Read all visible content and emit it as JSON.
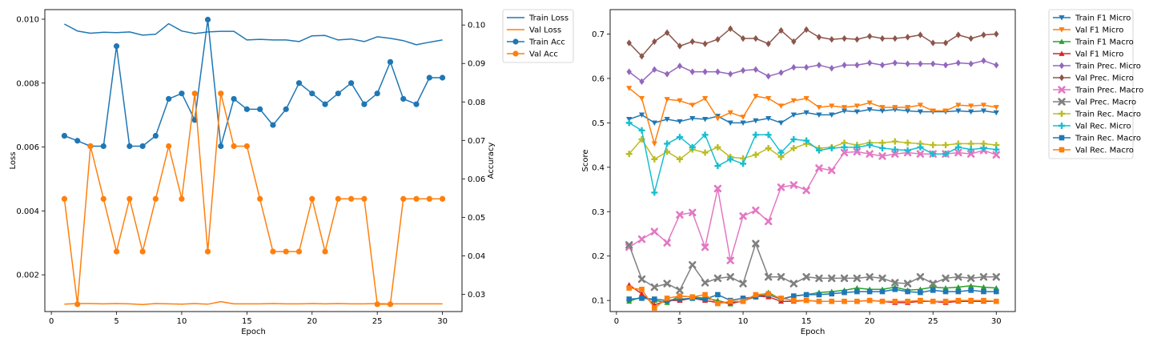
{
  "chart_data": [
    {
      "type": "line",
      "xlabel": "Epoch",
      "ylabel": "Loss",
      "ylabel_right": "Accuracy",
      "xlim": [
        -0.5,
        31.5
      ],
      "ylim": [
        0.00085,
        0.0103
      ],
      "ylim_right": [
        0.0255,
        0.104
      ],
      "x_ticks": [
        0,
        5,
        10,
        15,
        20,
        25,
        30
      ],
      "y_ticks": [
        "0.002",
        "0.004",
        "0.006",
        "0.008",
        "0.010"
      ],
      "y_ticks_right": [
        "0.03",
        "0.04",
        "0.05",
        "0.06",
        "0.07",
        "0.08",
        "0.09",
        "0.10"
      ],
      "grid": false,
      "legend_position": "outside-top-right",
      "x": [
        1,
        2,
        3,
        4,
        5,
        6,
        7,
        8,
        9,
        10,
        11,
        12,
        13,
        14,
        15,
        16,
        17,
        18,
        19,
        20,
        21,
        22,
        23,
        24,
        25,
        26,
        27,
        28,
        29,
        30
      ],
      "series": [
        {
          "name": "Train Loss",
          "axis": "left",
          "color": "#1f77b4",
          "marker": "none",
          "values": [
            0.00985,
            0.00963,
            0.00956,
            0.00959,
            0.00958,
            0.0096,
            0.0095,
            0.00953,
            0.00986,
            0.00963,
            0.00955,
            0.0096,
            0.00962,
            0.00962,
            0.00935,
            0.00937,
            0.00935,
            0.00935,
            0.0093,
            0.00948,
            0.00949,
            0.00935,
            0.00938,
            0.0093,
            0.00945,
            0.0094,
            0.00933,
            0.0092,
            0.00928,
            0.00935
          ]
        },
        {
          "name": "Val Loss",
          "axis": "left",
          "color": "#ff7f0e",
          "marker": "none",
          "values": [
            0.00108,
            0.0011,
            0.0011,
            0.00109,
            0.0011,
            0.00109,
            0.00107,
            0.0011,
            0.00109,
            0.00108,
            0.0011,
            0.00108,
            0.00116,
            0.00109,
            0.00109,
            0.00109,
            0.0011,
            0.00109,
            0.00109,
            0.0011,
            0.00109,
            0.0011,
            0.00109,
            0.00109,
            0.0011,
            0.00109,
            0.00109,
            0.00109,
            0.00109,
            0.00109
          ]
        },
        {
          "name": "Train Acc",
          "axis": "right",
          "color": "#1f77b4",
          "marker": "circle",
          "values": [
            0.0712,
            0.0699,
            0.0685,
            0.0685,
            0.0945,
            0.0685,
            0.0685,
            0.0712,
            0.0808,
            0.0822,
            0.0753,
            0.1014,
            0.0685,
            0.0808,
            0.0781,
            0.0781,
            0.074,
            0.0781,
            0.0849,
            0.0822,
            0.0794,
            0.0822,
            0.0849,
            0.0794,
            0.0822,
            0.0904,
            0.0808,
            0.0794,
            0.0863,
            0.0863
          ]
        },
        {
          "name": "Val Acc",
          "axis": "right",
          "color": "#ff7f0e",
          "marker": "circle",
          "values": [
            0.0548,
            0.0274,
            0.0685,
            0.0548,
            0.0411,
            0.0548,
            0.0411,
            0.0548,
            0.0685,
            0.0548,
            0.0822,
            0.0411,
            0.0822,
            0.0685,
            0.0685,
            0.0548,
            0.0411,
            0.0411,
            0.0411,
            0.0548,
            0.0411,
            0.0548,
            0.0548,
            0.0548,
            0.0274,
            0.0274,
            0.0548,
            0.0548,
            0.0548,
            0.0548
          ]
        }
      ]
    },
    {
      "type": "line",
      "xlabel": "Epoch",
      "ylabel": "Score",
      "xlim": [
        -0.5,
        31.5
      ],
      "ylim": [
        0.075,
        0.755
      ],
      "x_ticks": [
        0,
        5,
        10,
        15,
        20,
        25,
        30
      ],
      "y_ticks": [
        "0.1",
        "0.2",
        "0.3",
        "0.4",
        "0.5",
        "0.6",
        "0.7"
      ],
      "grid": false,
      "legend_position": "outside-top-right",
      "x": [
        1,
        2,
        3,
        4,
        5,
        6,
        7,
        8,
        9,
        10,
        11,
        12,
        13,
        14,
        15,
        16,
        17,
        18,
        19,
        20,
        21,
        22,
        23,
        24,
        25,
        26,
        27,
        28,
        29,
        30
      ],
      "series": [
        {
          "name": "Train F1 Micro",
          "color": "#1f77b4",
          "marker": "triangle_down",
          "values": [
            0.508,
            0.518,
            0.5,
            0.508,
            0.503,
            0.51,
            0.508,
            0.515,
            0.5,
            0.5,
            0.505,
            0.51,
            0.5,
            0.518,
            0.523,
            0.518,
            0.518,
            0.527,
            0.525,
            0.53,
            0.527,
            0.53,
            0.527,
            0.525,
            0.525,
            0.525,
            0.527,
            0.525,
            0.527,
            0.523
          ]
        },
        {
          "name": "Val F1 Micro",
          "color": "#ff7f0e",
          "marker": "triangle_down",
          "values": [
            0.578,
            0.555,
            0.453,
            0.553,
            0.55,
            0.54,
            0.555,
            0.51,
            0.523,
            0.513,
            0.56,
            0.555,
            0.538,
            0.55,
            0.555,
            0.535,
            0.538,
            0.535,
            0.538,
            0.545,
            0.535,
            0.535,
            0.535,
            0.54,
            0.527,
            0.527,
            0.54,
            0.538,
            0.54,
            0.535
          ]
        },
        {
          "name": "Train F1 Macro",
          "color": "#2ca02c",
          "marker": "triangle_up",
          "values": [
            0.098,
            0.108,
            0.1,
            0.095,
            0.11,
            0.108,
            0.105,
            0.1,
            0.092,
            0.1,
            0.108,
            0.118,
            0.103,
            0.11,
            0.113,
            0.118,
            0.12,
            0.123,
            0.128,
            0.125,
            0.125,
            0.13,
            0.123,
            0.125,
            0.13,
            0.128,
            0.13,
            0.133,
            0.13,
            0.128
          ]
        },
        {
          "name": "Val F1 Micro",
          "color": "#d62728",
          "marker": "triangle_up",
          "values": [
            0.135,
            0.115,
            0.09,
            0.1,
            0.1,
            0.105,
            0.1,
            0.095,
            0.095,
            0.098,
            0.11,
            0.108,
            0.098,
            0.098,
            0.1,
            0.098,
            0.098,
            0.098,
            0.098,
            0.1,
            0.098,
            0.095,
            0.095,
            0.098,
            0.098,
            0.095,
            0.098,
            0.098,
            0.098,
            0.098
          ]
        },
        {
          "name": "Train Prec. Micro",
          "color": "#9467bd",
          "marker": "diamond",
          "values": [
            0.615,
            0.593,
            0.62,
            0.61,
            0.628,
            0.615,
            0.615,
            0.615,
            0.61,
            0.618,
            0.62,
            0.605,
            0.613,
            0.625,
            0.625,
            0.63,
            0.623,
            0.63,
            0.63,
            0.635,
            0.63,
            0.635,
            0.633,
            0.633,
            0.633,
            0.63,
            0.635,
            0.633,
            0.64,
            0.63
          ]
        },
        {
          "name": "Val Prec. Micro",
          "color": "#8c564b",
          "marker": "diamond",
          "values": [
            0.68,
            0.65,
            0.683,
            0.703,
            0.673,
            0.683,
            0.678,
            0.688,
            0.712,
            0.69,
            0.69,
            0.678,
            0.708,
            0.683,
            0.71,
            0.693,
            0.688,
            0.69,
            0.688,
            0.695,
            0.69,
            0.69,
            0.693,
            0.698,
            0.68,
            0.68,
            0.698,
            0.69,
            0.698,
            0.7
          ]
        },
        {
          "name": "Train Prec. Macro",
          "color": "#e377c2",
          "marker": "x",
          "values": [
            0.22,
            0.238,
            0.255,
            0.23,
            0.293,
            0.298,
            0.22,
            0.352,
            0.19,
            0.29,
            0.303,
            0.278,
            0.355,
            0.36,
            0.348,
            0.398,
            0.393,
            0.433,
            0.435,
            0.43,
            0.425,
            0.43,
            0.433,
            0.43,
            0.43,
            0.43,
            0.433,
            0.43,
            0.438,
            0.428
          ]
        },
        {
          "name": "Val Prec. Macro",
          "color": "#7f7f7f",
          "marker": "x",
          "values": [
            0.225,
            0.148,
            0.13,
            0.138,
            0.123,
            0.18,
            0.14,
            0.15,
            0.153,
            0.138,
            0.228,
            0.153,
            0.153,
            0.138,
            0.153,
            0.15,
            0.15,
            0.15,
            0.15,
            0.153,
            0.15,
            0.14,
            0.138,
            0.153,
            0.138,
            0.15,
            0.153,
            0.15,
            0.153,
            0.153
          ]
        },
        {
          "name": "Train Rec. Macro",
          "color": "#bcbd22",
          "marker": "plus",
          "values": [
            0.43,
            0.463,
            0.418,
            0.435,
            0.418,
            0.44,
            0.433,
            0.445,
            0.423,
            0.42,
            0.428,
            0.443,
            0.423,
            0.443,
            0.453,
            0.443,
            0.445,
            0.455,
            0.45,
            0.455,
            0.455,
            0.458,
            0.455,
            0.453,
            0.45,
            0.45,
            0.453,
            0.453,
            0.453,
            0.45
          ]
        },
        {
          "name": "Val Rec. Micro",
          "color": "#17becf",
          "marker": "plus",
          "values": [
            0.5,
            0.483,
            0.343,
            0.453,
            0.468,
            0.445,
            0.473,
            0.403,
            0.418,
            0.408,
            0.473,
            0.473,
            0.433,
            0.463,
            0.46,
            0.438,
            0.443,
            0.445,
            0.445,
            0.45,
            0.443,
            0.44,
            0.438,
            0.445,
            0.43,
            0.43,
            0.445,
            0.44,
            0.443,
            0.44
          ]
        },
        {
          "name": "Train Rec. Macro",
          "color": "#1f77b4",
          "marker": "square",
          "values": [
            0.103,
            0.105,
            0.103,
            0.1,
            0.103,
            0.105,
            0.103,
            0.113,
            0.1,
            0.105,
            0.108,
            0.113,
            0.103,
            0.11,
            0.113,
            0.113,
            0.115,
            0.118,
            0.12,
            0.12,
            0.12,
            0.125,
            0.12,
            0.118,
            0.123,
            0.12,
            0.12,
            0.123,
            0.12,
            0.12
          ]
        },
        {
          "name": "Val Rec. Macro",
          "color": "#ff7f0e",
          "marker": "square",
          "values": [
            0.128,
            0.125,
            0.083,
            0.105,
            0.11,
            0.108,
            0.113,
            0.093,
            0.098,
            0.098,
            0.113,
            0.115,
            0.105,
            0.1,
            0.1,
            0.098,
            0.098,
            0.098,
            0.098,
            0.1,
            0.098,
            0.098,
            0.098,
            0.1,
            0.098,
            0.098,
            0.1,
            0.1,
            0.1,
            0.098
          ]
        }
      ]
    }
  ]
}
